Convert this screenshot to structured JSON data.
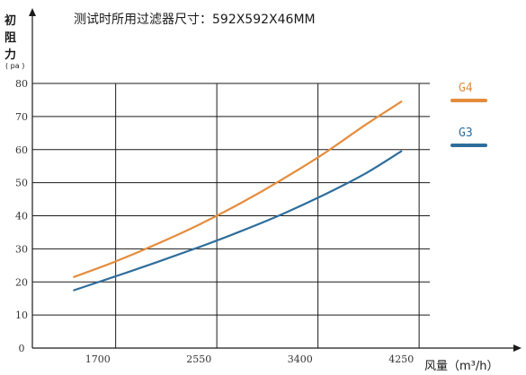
{
  "chart_data": {
    "type": "line",
    "title": "测试时所用过滤器尺寸：592X592X46MM",
    "ylabel_lines": [
      "初",
      "阻",
      "力"
    ],
    "ylabel_unit": "( pa )",
    "xlabel": "风量（m³/h）",
    "xlim": [
      1150,
      5200
    ],
    "ylim": [
      0,
      80
    ],
    "x_ticks": [
      {
        "value": 1700,
        "label": "1700"
      },
      {
        "value": 2550,
        "label": "2550"
      },
      {
        "value": 3400,
        "label": "3400"
      },
      {
        "value": 4250,
        "label": "4250"
      }
    ],
    "x_gridlines": [
      1850,
      2700,
      3550,
      4400
    ],
    "y_ticks": [
      {
        "value": 0,
        "label": "0"
      },
      {
        "value": 10,
        "label": "10"
      },
      {
        "value": 20,
        "label": "20"
      },
      {
        "value": 30,
        "label": "30"
      },
      {
        "value": 40,
        "label": "40"
      },
      {
        "value": 50,
        "label": "50"
      },
      {
        "value": 60,
        "label": "60"
      },
      {
        "value": 70,
        "label": "70"
      },
      {
        "value": 80,
        "label": "80"
      }
    ],
    "grid": true,
    "legend_position": "right",
    "series": [
      {
        "name": "G4",
        "color": "#e58c3c",
        "x": [
          1500,
          1850,
          2200,
          2550,
          2900,
          3250,
          3600,
          3950,
          4250
        ],
        "y": [
          21.5,
          26.2,
          31.5,
          37.3,
          43.8,
          51.0,
          58.8,
          67.5,
          74.5
        ]
      },
      {
        "name": "G3",
        "color": "#2e6d9c",
        "x": [
          1500,
          1850,
          2200,
          2550,
          2900,
          3250,
          3600,
          3950,
          4250
        ],
        "y": [
          17.5,
          21.7,
          26.0,
          30.5,
          35.3,
          40.5,
          46.3,
          52.8,
          59.5
        ]
      }
    ]
  }
}
